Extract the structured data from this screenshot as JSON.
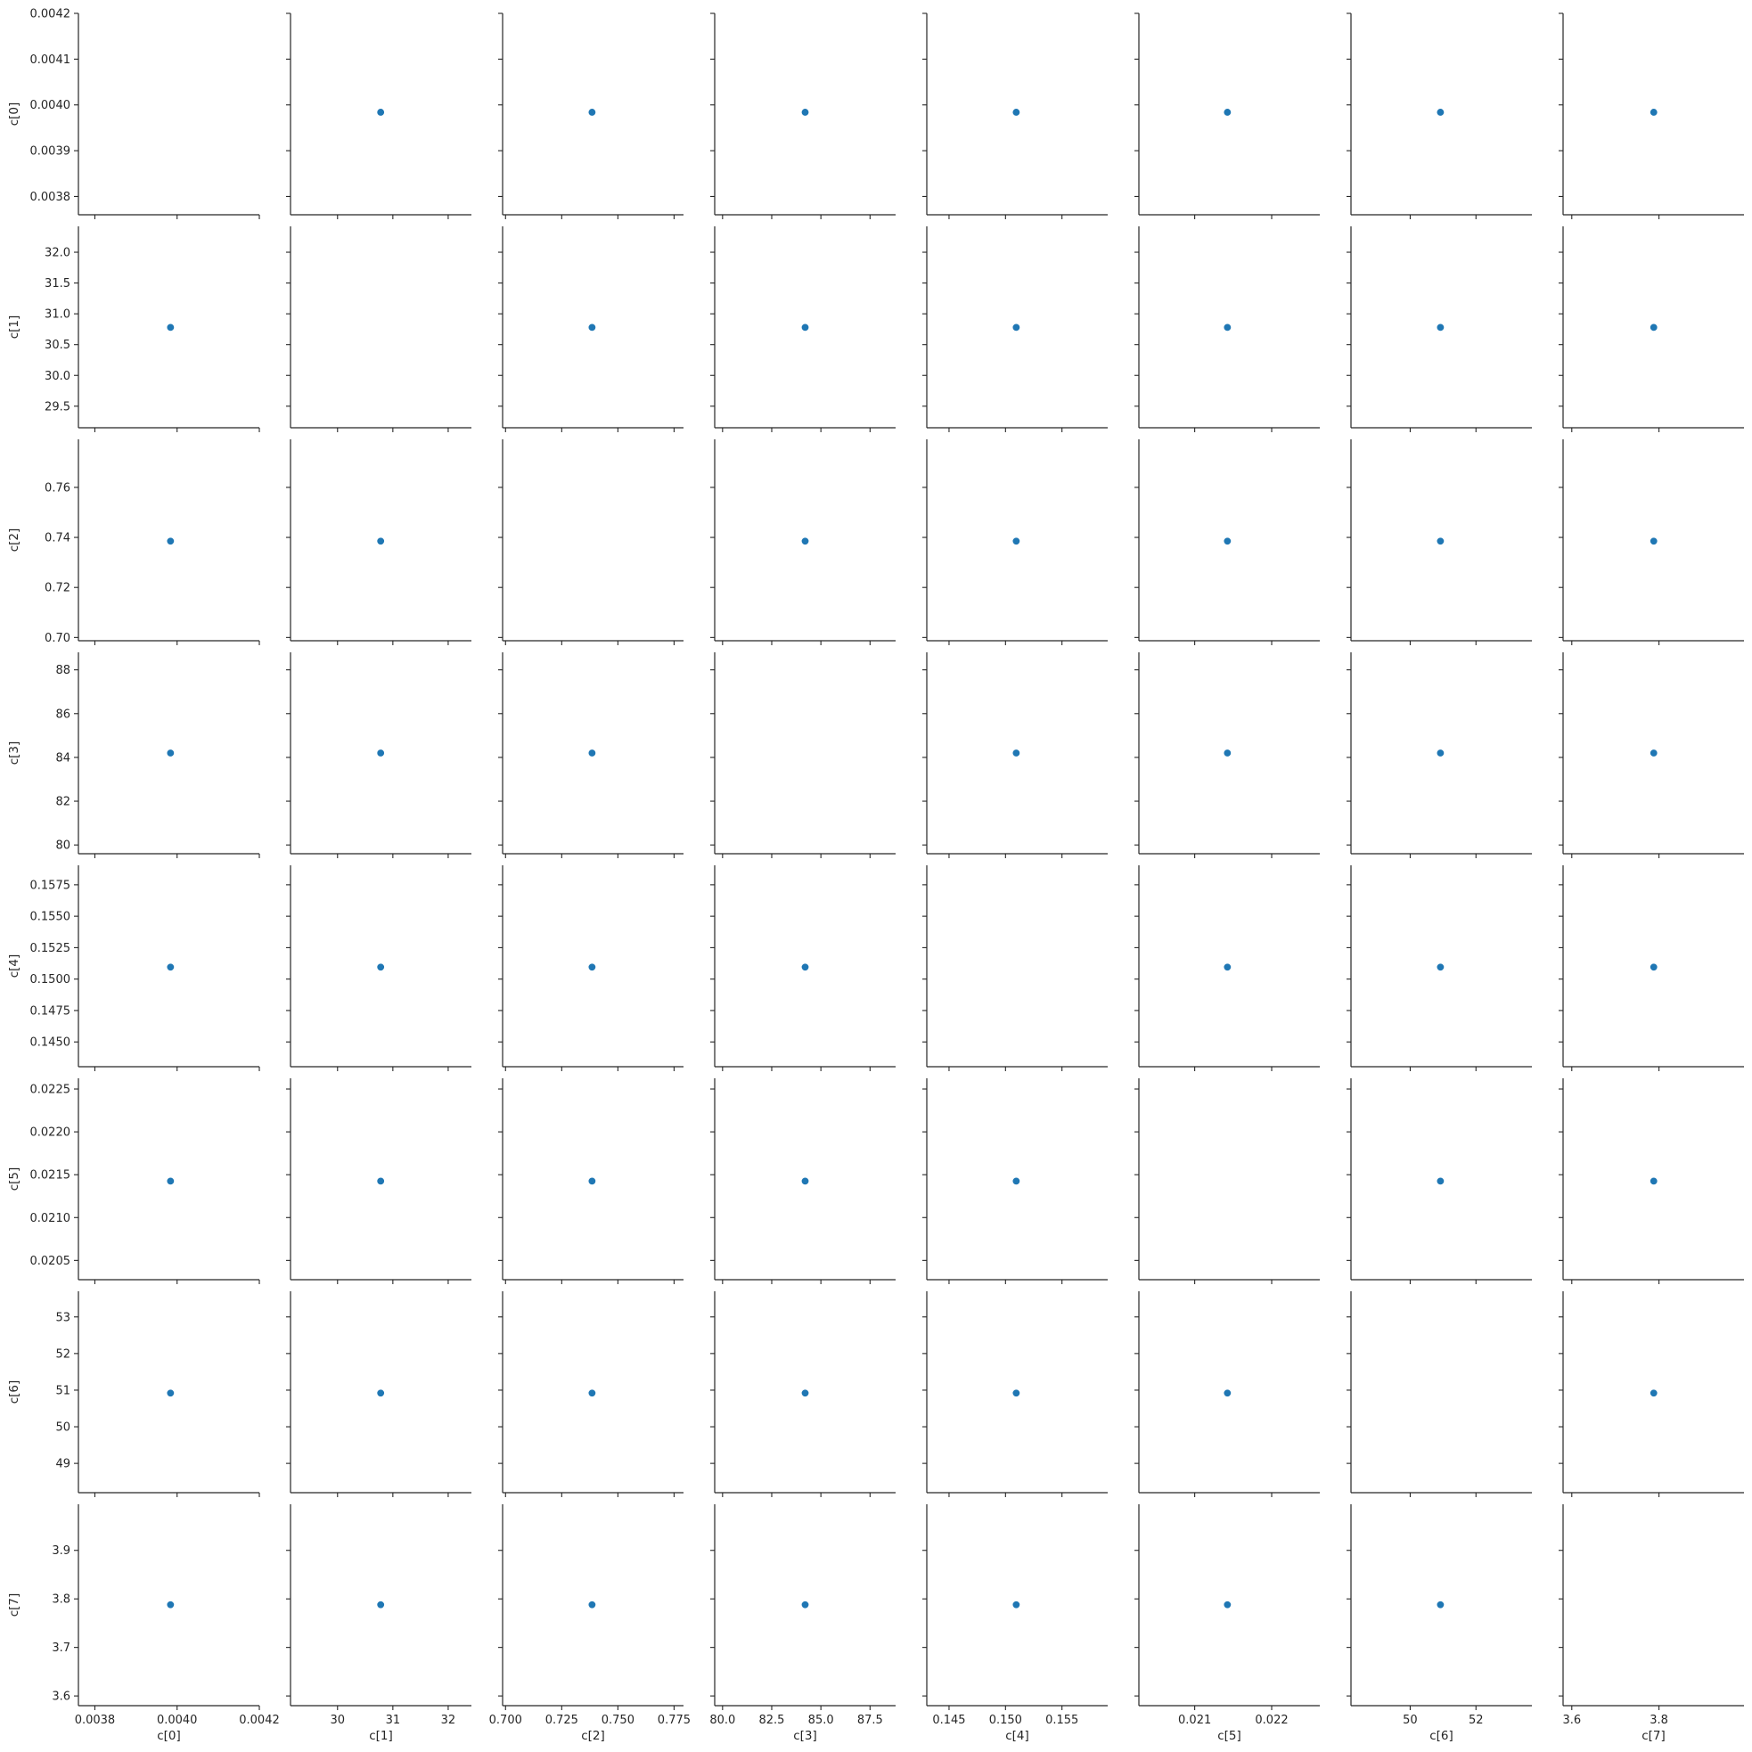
{
  "chart_data": {
    "type": "scatter",
    "layout": "pairplot",
    "diagonal": "empty",
    "point_color": "#1f77b4",
    "variables": [
      {
        "name": "c[0]",
        "value": 0.003984,
        "lim": [
          0.00376,
          0.0042
        ],
        "ticks": [
          0.0038,
          0.0039,
          0.004,
          0.0041,
          0.0042
        ],
        "tick_labels": [
          "0.0038",
          "0.0039",
          "0.0040",
          "0.0041",
          "0.0042"
        ],
        "x_ticks": [
          0.0038,
          0.004,
          0.0042
        ],
        "x_tick_labels": [
          "0.0038",
          "0.0040",
          "0.0042"
        ]
      },
      {
        "name": "c[1]",
        "value": 30.78,
        "lim": [
          29.15,
          32.42
        ],
        "ticks": [
          29.5,
          30.0,
          30.5,
          31.0,
          31.5,
          32.0
        ],
        "tick_labels": [
          "29.5",
          "30.0",
          "30.5",
          "31.0",
          "31.5",
          "32.0"
        ],
        "x_ticks": [
          30,
          31,
          32
        ],
        "x_tick_labels": [
          "30",
          "31",
          "32"
        ]
      },
      {
        "name": "c[2]",
        "value": 0.7385,
        "lim": [
          0.6987,
          0.7792
        ],
        "ticks": [
          0.7,
          0.72,
          0.74,
          0.76
        ],
        "tick_labels": [
          "0.70",
          "0.72",
          "0.74",
          "0.76"
        ],
        "x_ticks": [
          0.7,
          0.725,
          0.75,
          0.775
        ],
        "x_tick_labels": [
          "0.700",
          "0.725",
          "0.750",
          "0.775"
        ]
      },
      {
        "name": "c[3]",
        "value": 84.2,
        "lim": [
          79.6,
          88.8
        ],
        "ticks": [
          80,
          82,
          84,
          86,
          88
        ],
        "tick_labels": [
          "80",
          "82",
          "84",
          "86",
          "88"
        ],
        "x_ticks": [
          80,
          82.5,
          85,
          87.5
        ],
        "x_tick_labels": [
          "80.0",
          "82.5",
          "85.0",
          "87.5"
        ]
      },
      {
        "name": "c[4]",
        "value": 0.15095,
        "lim": [
          0.14303,
          0.15905
        ],
        "ticks": [
          0.145,
          0.1475,
          0.15,
          0.1525,
          0.155,
          0.1575
        ],
        "tick_labels": [
          "0.1450",
          "0.1475",
          "0.1500",
          "0.1525",
          "0.1550",
          "0.1575"
        ],
        "x_ticks": [
          0.145,
          0.15,
          0.155
        ],
        "x_tick_labels": [
          "0.145",
          "0.150",
          "0.155"
        ]
      },
      {
        "name": "c[5]",
        "value": 0.021425,
        "lim": [
          0.020275,
          0.022625
        ],
        "ticks": [
          0.0205,
          0.021,
          0.0215,
          0.022,
          0.0225
        ],
        "tick_labels": [
          "0.0205",
          "0.0210",
          "0.0215",
          "0.0220",
          "0.0225"
        ],
        "x_ticks": [
          0.021,
          0.022
        ],
        "x_tick_labels": [
          "0.021",
          "0.022"
        ]
      },
      {
        "name": "c[6]",
        "value": 50.92,
        "lim": [
          48.2,
          53.7
        ],
        "ticks": [
          49,
          50,
          51,
          52,
          53
        ],
        "tick_labels": [
          "49",
          "50",
          "51",
          "52",
          "53"
        ],
        "x_ticks": [
          50,
          52
        ],
        "x_tick_labels": [
          "50",
          "52"
        ]
      },
      {
        "name": "c[7]",
        "value": 3.788,
        "lim": [
          3.58,
          3.995
        ],
        "ticks": [
          3.6,
          3.7,
          3.8,
          3.9
        ],
        "tick_labels": [
          "3.6",
          "3.7",
          "3.8",
          "3.9"
        ],
        "x_ticks": [
          3.6,
          3.8
        ],
        "x_tick_labels": [
          "3.6",
          "3.8"
        ]
      }
    ]
  }
}
